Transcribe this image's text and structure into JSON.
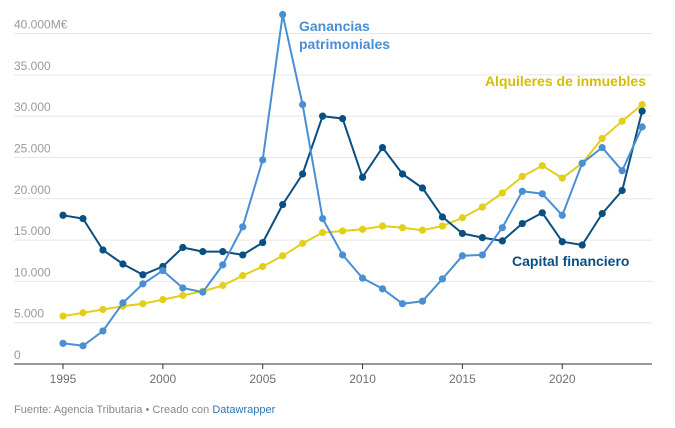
{
  "chart_data": {
    "type": "line",
    "title": "",
    "xlabel": "",
    "ylabel": "",
    "x": [
      1995,
      1996,
      1997,
      1998,
      1999,
      2000,
      2001,
      2002,
      2003,
      2004,
      2005,
      2006,
      2007,
      2008,
      2009,
      2010,
      2011,
      2012,
      2013,
      2014,
      2015,
      2016,
      2017,
      2018,
      2019,
      2020,
      2021,
      2022,
      2023,
      2024
    ],
    "xlim": [
      1994.2,
      2024.6
    ],
    "ylim": [
      0,
      42000
    ],
    "yticks": [
      0,
      5000,
      10000,
      15000,
      20000,
      25000,
      30000,
      35000,
      40000
    ],
    "ytick_labels": [
      "0",
      "5.000",
      "10.000",
      "15.000",
      "20.000",
      "25.000",
      "30.000",
      "35.000",
      "40.000M€"
    ],
    "xticks": [
      1995,
      2000,
      2005,
      2010,
      2015,
      2020
    ],
    "xtick_labels": [
      "1995",
      "2000",
      "2005",
      "2010",
      "2015",
      "2020"
    ],
    "series": [
      {
        "name": "Alquileres de inmuebles",
        "label": "Alquileres de inmuebles",
        "color": "#e4cf18",
        "values": [
          5800,
          6200,
          6600,
          7000,
          7300,
          7800,
          8300,
          8800,
          9500,
          10700,
          11800,
          13100,
          14600,
          15900,
          16100,
          16300,
          16700,
          16500,
          16200,
          16700,
          17700,
          19000,
          20700,
          22700,
          24000,
          22500,
          24300,
          27300,
          29400,
          31400
        ]
      },
      {
        "name": "Capital financiero",
        "label": "Capital financiero",
        "color": "#0b4e80",
        "values": [
          18000,
          17600,
          13800,
          12100,
          10800,
          11800,
          14100,
          13600,
          13600,
          13200,
          14700,
          19300,
          23000,
          30000,
          29700,
          22600,
          26200,
          23000,
          21300,
          17800,
          15800,
          15300,
          14900,
          17000,
          18300,
          14800,
          14400,
          18200,
          21000,
          30600
        ]
      },
      {
        "name": "Ganancias patrimoniales",
        "label_lines": [
          "Ganancias",
          "patrimoniales"
        ],
        "color": "#4a8fd4",
        "values": [
          2500,
          2200,
          4000,
          7400,
          9700,
          11300,
          9200,
          8700,
          12000,
          16600,
          24700,
          42300,
          31400,
          17600,
          13200,
          10400,
          9100,
          7300,
          7600,
          10300,
          13100,
          13200,
          16500,
          20900,
          20600,
          18000,
          24300,
          26200,
          23400,
          28700
        ]
      }
    ]
  },
  "footer": {
    "source_text": "Fuente: Agencia Tributaria • Creado con ",
    "brand": "Datawrapper"
  }
}
